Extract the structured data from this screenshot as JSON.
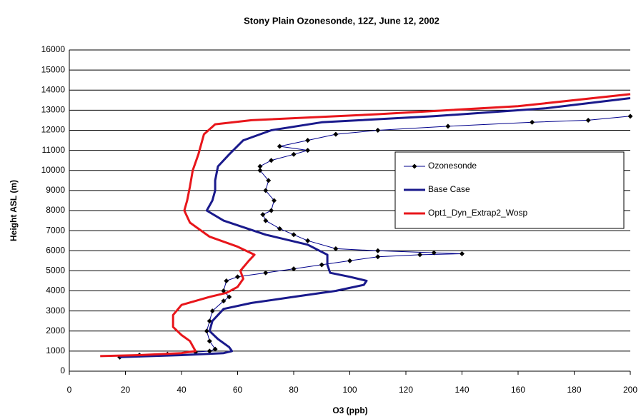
{
  "chart_data": {
    "type": "line",
    "title": "Stony Plain Ozonesonde, 12Z, June 12, 2002",
    "x_label": "O3 (ppb)",
    "y_label": "Height ASL (m)",
    "xlim": [
      0,
      200
    ],
    "xticks": [
      0,
      20,
      40,
      60,
      80,
      100,
      120,
      140,
      160,
      180,
      200
    ],
    "ylim": [
      0,
      16000
    ],
    "yticks": [
      0,
      1000,
      2000,
      3000,
      4000,
      5000,
      6000,
      7000,
      8000,
      9000,
      10000,
      11000,
      12000,
      13000,
      14000,
      15000,
      16000
    ],
    "grid": true,
    "legend": "right",
    "series": [
      {
        "name": "Ozonesonde",
        "color": "#000000",
        "marker": "diamond",
        "line_color": "#00008b",
        "line_width": 1,
        "x": [
          18,
          25,
          35,
          45,
          50,
          52,
          50,
          49,
          50,
          51,
          55,
          57,
          55,
          56,
          60,
          70,
          80,
          90,
          100,
          110,
          125,
          140,
          130,
          110,
          95,
          85,
          80,
          75,
          70,
          69,
          72,
          73,
          70,
          71,
          68,
          68,
          72,
          80,
          85,
          75,
          85,
          95,
          110,
          135,
          165,
          185,
          200
        ],
        "values": [
          700,
          800,
          850,
          950,
          1000,
          1100,
          1500,
          2000,
          2500,
          3000,
          3500,
          3700,
          4000,
          4500,
          4700,
          4900,
          5100,
          5300,
          5500,
          5700,
          5800,
          5850,
          5900,
          6000,
          6100,
          6500,
          6800,
          7100,
          7500,
          7800,
          8000,
          8500,
          9000,
          9500,
          10000,
          10200,
          10500,
          10800,
          11000,
          11200,
          11500,
          11800,
          12000,
          12200,
          12400,
          12500,
          12700
        ]
      },
      {
        "name": "Base Case",
        "color": "#1a1a8c",
        "line_width": 3,
        "x": [
          18,
          40,
          55,
          58,
          57,
          53,
          50,
          51,
          55,
          65,
          80,
          95,
          105,
          106,
          100,
          93,
          92,
          92,
          85,
          70,
          55,
          49,
          51,
          52,
          52,
          53,
          57,
          62,
          72,
          90,
          130,
          170,
          200
        ],
        "values": [
          700,
          800,
          900,
          1000,
          1200,
          1600,
          2000,
          2500,
          3100,
          3400,
          3700,
          4000,
          4300,
          4500,
          4700,
          4900,
          5300,
          5800,
          6300,
          6800,
          7500,
          8000,
          8500,
          9000,
          9500,
          10200,
          10800,
          11500,
          12000,
          12400,
          12700,
          13100,
          13600
        ]
      },
      {
        "name": "Opt1_Dyn_Extrap2_Wosp",
        "color": "#e8161b",
        "line_width": 3,
        "x": [
          11,
          25,
          40,
          45,
          43,
          40,
          37,
          37,
          40,
          50,
          56,
          60,
          62,
          61,
          64,
          66,
          60,
          50,
          43,
          41,
          42,
          43,
          44,
          46,
          48,
          52,
          65,
          110,
          160,
          200
        ],
        "values": [
          750,
          800,
          900,
          1000,
          1500,
          1800,
          2200,
          2800,
          3300,
          3700,
          3900,
          4200,
          4600,
          5000,
          5500,
          5800,
          6200,
          6700,
          7400,
          8000,
          8500,
          9200,
          10000,
          10800,
          11800,
          12300,
          12500,
          12800,
          13200,
          13800
        ]
      }
    ]
  }
}
